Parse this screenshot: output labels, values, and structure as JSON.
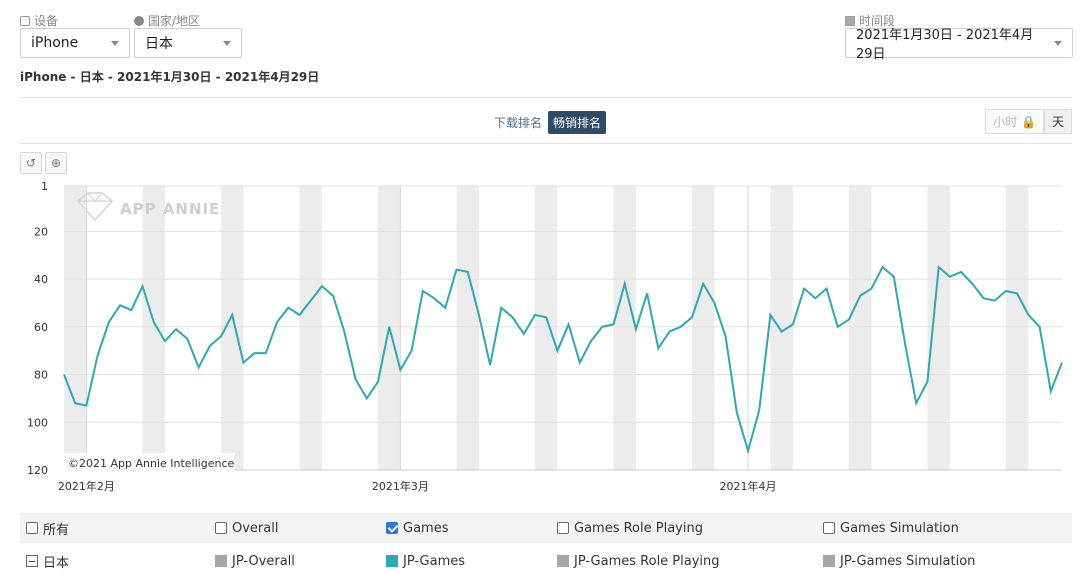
{
  "filters": {
    "device": {
      "label": "设备",
      "value": "iPhone"
    },
    "country": {
      "label": "国家/地区",
      "value": "日本"
    },
    "period": {
      "label": "时间段",
      "value": "2021年1月30日 - 2021年4月29日"
    }
  },
  "subtitle": "iPhone - 日本 - 2021年1月30日 - 2021年4月29日",
  "rank_toggle": {
    "download": "下载排名",
    "grossing": "畅销排名",
    "active": "grossing"
  },
  "granularity": {
    "hour": "小时",
    "day": "天",
    "active": "day"
  },
  "tools": {
    "reset": "↺",
    "zoom": "⊕"
  },
  "watermark": "APP ANNIE",
  "copyright": "©2021 App Annie Intelligence",
  "legend": {
    "header": [
      {
        "label": "所有",
        "checked": false
      },
      {
        "label": "Overall",
        "checked": false
      },
      {
        "label": "Games",
        "checked": true
      },
      {
        "label": "Games Role Playing",
        "checked": false
      },
      {
        "label": "Games Simulation",
        "checked": false
      }
    ],
    "country": "日本",
    "series": [
      {
        "label": "JP-Overall",
        "color": "#a6a6a6"
      },
      {
        "label": "JP-Games",
        "color": "#2ba9b4"
      },
      {
        "label": "JP-Games Role Playing",
        "color": "#a6a6a6"
      },
      {
        "label": "JP-Games Simulation",
        "color": "#a6a6a6"
      }
    ]
  },
  "chart_data": {
    "type": "line",
    "title": "",
    "xlabel": "",
    "ylabel": "",
    "y_reversed": true,
    "ylim": [
      1,
      120
    ],
    "yticks": [
      1,
      20,
      40,
      60,
      80,
      100,
      120
    ],
    "x_start": "2021-01-30",
    "x_end": "2021-04-29",
    "x_tick_labels": [
      {
        "date": "2021-02-01",
        "label": "2021年2月"
      },
      {
        "date": "2021-03-01",
        "label": "2021年3月"
      },
      {
        "date": "2021-04-01",
        "label": "2021年4月"
      }
    ],
    "weekend_shading": true,
    "series": [
      {
        "color": "#2ba9b4",
        "values": [
          80,
          92,
          93,
          72,
          58,
          51,
          53,
          43,
          58,
          66,
          61,
          65,
          77,
          68,
          64,
          55,
          75,
          71,
          71,
          58,
          52,
          55,
          49,
          43,
          47,
          62,
          82,
          90,
          83,
          60,
          78,
          70,
          45,
          48,
          52,
          36,
          37,
          55,
          76,
          52,
          56,
          63,
          55,
          56,
          70,
          59,
          75,
          66,
          60,
          59,
          42,
          61,
          46,
          69,
          62,
          60,
          56,
          42,
          50,
          64,
          96,
          112,
          95,
          55,
          62,
          59,
          44,
          48,
          44,
          60,
          57,
          47,
          44,
          35,
          39,
          67,
          92,
          83,
          35,
          39,
          37,
          42,
          48,
          49,
          45,
          46,
          55,
          60,
          87,
          75
        ]
      }
    ]
  }
}
